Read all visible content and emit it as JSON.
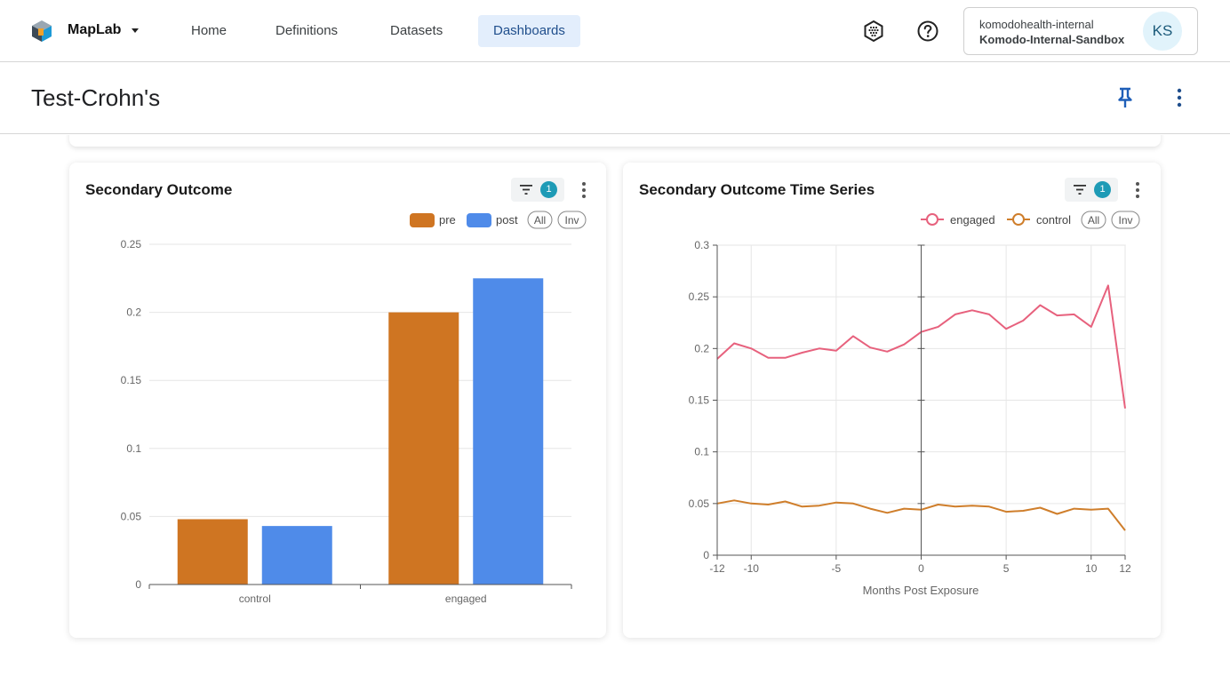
{
  "app": {
    "name": "MapLab",
    "nav": [
      "Home",
      "Definitions",
      "Datasets",
      "Dashboards"
    ],
    "active_nav": "Dashboards",
    "account": {
      "org": "komodohealth-internal",
      "env": "Komodo-Internal-Sandbox",
      "initials": "KS"
    }
  },
  "page": {
    "title": "Test-Crohn's"
  },
  "icons": [
    "logo-icon",
    "caret-down-icon",
    "hexagon-grid-icon",
    "help-circle-icon",
    "pin-icon",
    "more-vertical-icon",
    "filter-icon"
  ],
  "colors": {
    "pre": "#cf7522",
    "post": "#4f8be9",
    "engaged": "#e7617d",
    "control": "#cf7e2b",
    "active_nav_bg": "#e3eefc",
    "badge": "#1e9bb6"
  },
  "cards": [
    {
      "title": "Secondary Outcome",
      "filter_count": "1",
      "legend": [
        "pre",
        "post"
      ],
      "legend_buttons": [
        "All",
        "Inv"
      ]
    },
    {
      "title": "Secondary Outcome Time Series",
      "filter_count": "1",
      "legend": [
        "engaged",
        "control"
      ],
      "legend_buttons": [
        "All",
        "Inv"
      ]
    }
  ],
  "chart_data": [
    {
      "type": "bar",
      "categories": [
        "control",
        "engaged"
      ],
      "series": [
        {
          "name": "pre",
          "values": [
            0.048,
            0.2
          ]
        },
        {
          "name": "post",
          "values": [
            0.043,
            0.225
          ]
        }
      ],
      "ylim": [
        0,
        0.25
      ],
      "yticks": [
        "0",
        "0.05",
        "0.1",
        "0.15",
        "0.2",
        "0.25"
      ],
      "grid": true,
      "legend_position": "top-right"
    },
    {
      "type": "line",
      "x": [
        -12,
        -11,
        -10,
        -9,
        -8,
        -7,
        -6,
        -5,
        -4,
        -3,
        -2,
        -1,
        0,
        1,
        2,
        3,
        4,
        5,
        6,
        7,
        8,
        9,
        10,
        11,
        12
      ],
      "series": [
        {
          "name": "engaged",
          "values": [
            0.19,
            0.205,
            0.2,
            0.191,
            0.191,
            0.196,
            0.2,
            0.198,
            0.212,
            0.201,
            0.197,
            0.204,
            0.216,
            0.221,
            0.233,
            0.237,
            0.233,
            0.219,
            0.227,
            0.242,
            0.232,
            0.233,
            0.221,
            0.261,
            0.142
          ]
        },
        {
          "name": "control",
          "values": [
            0.05,
            0.053,
            0.05,
            0.049,
            0.052,
            0.047,
            0.048,
            0.051,
            0.05,
            0.045,
            0.041,
            0.045,
            0.044,
            0.049,
            0.047,
            0.048,
            0.047,
            0.042,
            0.043,
            0.046,
            0.04,
            0.045,
            0.044,
            0.045,
            0.024
          ]
        }
      ],
      "xlabel": "Months Post Exposure",
      "ylabel": "",
      "xlim": [
        -12,
        12
      ],
      "ylim": [
        0,
        0.3
      ],
      "xticks": [
        "-12",
        "-10",
        "-5",
        "0",
        "5",
        "10",
        "12"
      ],
      "yticks": [
        "0",
        "0.05",
        "0.1",
        "0.15",
        "0.2",
        "0.25",
        "0.3"
      ],
      "grid": true,
      "legend_position": "top-right"
    }
  ]
}
